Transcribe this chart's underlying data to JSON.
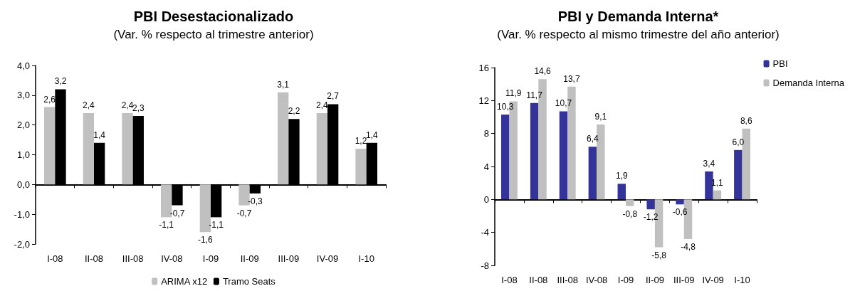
{
  "chart_data": [
    {
      "type": "bar",
      "title": "PBI Desestacionalizado",
      "subtitle": "(Var. % respecto al trimestre anterior)",
      "categories": [
        "I-08",
        "II-08",
        "III-08",
        "IV-08",
        "I-09",
        "II-09",
        "III-09",
        "IV-09",
        "I-10"
      ],
      "series": [
        {
          "name": "ARIMA x12",
          "color": "#c0c0c0",
          "values": [
            2.6,
            2.4,
            2.4,
            -1.1,
            -1.6,
            -0.7,
            3.1,
            2.4,
            1.2
          ],
          "value_labels": [
            "2,6",
            "2,4",
            "2,4",
            "-1,1",
            "-1,6",
            "-0,7",
            "3,1",
            "2,4",
            "1,2"
          ]
        },
        {
          "name": "Tramo Seats",
          "color": "#000000",
          "values": [
            3.2,
            1.4,
            2.3,
            -0.7,
            -1.1,
            -0.3,
            2.2,
            2.7,
            1.4
          ],
          "value_labels": [
            "3,2",
            "1,4",
            "2,3",
            "-0,7",
            "-1,1",
            "-0,3",
            "2,2",
            "2,7",
            "1,4"
          ]
        }
      ],
      "ylim": [
        -2,
        4
      ],
      "yticks": [
        {
          "value": -2,
          "label": "-2,0"
        },
        {
          "value": -1,
          "label": "-1,0"
        },
        {
          "value": 0,
          "label": "0,0"
        },
        {
          "value": 1,
          "label": "1,0"
        },
        {
          "value": 2,
          "label": "2,0"
        },
        {
          "value": 3,
          "label": "3,0"
        },
        {
          "value": 4,
          "label": "4,0"
        }
      ],
      "legend": "bottom"
    },
    {
      "type": "bar",
      "title": "PBI y Demanda Interna*",
      "subtitle": "(Var. % respecto al mismo trimestre del año anterior)",
      "categories": [
        "I-08",
        "II-08",
        "III-08",
        "IV-08",
        "I-09",
        "II-09",
        "III-09",
        "IV-09",
        "I-10"
      ],
      "series": [
        {
          "name": "PBI",
          "color": "#333399",
          "values": [
            10.3,
            11.7,
            10.7,
            6.4,
            1.9,
            -1.2,
            -0.6,
            3.4,
            6.0
          ],
          "value_labels": [
            "10,3",
            "11,7",
            "10,7",
            "6,4",
            "1,9",
            "-1,2",
            "-0,6",
            "3,4",
            "6,0"
          ]
        },
        {
          "name": "Demanda Interna",
          "color": "#c0c0c0",
          "values": [
            11.9,
            14.6,
            13.7,
            9.1,
            -0.8,
            -5.8,
            -4.8,
            1.1,
            8.6
          ],
          "value_labels": [
            "11,9",
            "14,6",
            "13,7",
            "9,1",
            "-0,8",
            "-5,8",
            "-4,8",
            "1,1",
            "8,6"
          ]
        }
      ],
      "ylim": [
        -8,
        16
      ],
      "yticks": [
        -8,
        -4,
        0,
        4,
        8,
        12,
        16
      ],
      "legend": "top right"
    }
  ]
}
